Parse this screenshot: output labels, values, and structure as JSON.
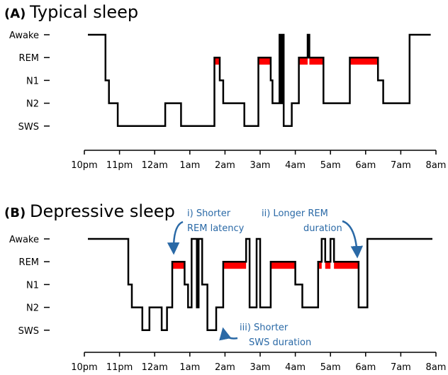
{
  "chart_data": [
    {
      "type": "line",
      "panel_label": "(A)",
      "title": "Typical sleep",
      "stages": [
        "Awake",
        "REM",
        "N1",
        "N2",
        "SWS"
      ],
      "x_ticks": [
        "10pm",
        "11pm",
        "12am",
        "1am",
        "2am",
        "3am",
        "4am",
        "5am",
        "6am",
        "7am",
        "8am"
      ],
      "x_range_hours": [
        0,
        10
      ],
      "hypnogram": [
        [
          0.1,
          "Awake"
        ],
        [
          0.6,
          "Awake"
        ],
        [
          0.6,
          "N1"
        ],
        [
          0.7,
          "N1"
        ],
        [
          0.7,
          "N2"
        ],
        [
          0.95,
          "N2"
        ],
        [
          0.95,
          "SWS"
        ],
        [
          2.3,
          "SWS"
        ],
        [
          2.3,
          "N2"
        ],
        [
          2.75,
          "N2"
        ],
        [
          2.75,
          "SWS"
        ],
        [
          3.7,
          "SWS"
        ],
        [
          3.7,
          "REM"
        ],
        [
          3.85,
          "REM"
        ],
        [
          3.85,
          "N1"
        ],
        [
          3.95,
          "N1"
        ],
        [
          3.95,
          "N2"
        ],
        [
          4.55,
          "N2"
        ],
        [
          4.55,
          "SWS"
        ],
        [
          4.95,
          "SWS"
        ],
        [
          4.95,
          "REM"
        ],
        [
          5.3,
          "REM"
        ],
        [
          5.3,
          "N1"
        ],
        [
          5.35,
          "N1"
        ],
        [
          5.35,
          "N2"
        ],
        [
          5.55,
          "N2"
        ],
        [
          5.55,
          "Awake"
        ],
        [
          5.6,
          "Awake"
        ],
        [
          5.6,
          "N2"
        ],
        [
          5.63,
          "N2"
        ],
        [
          5.63,
          "Awake"
        ],
        [
          5.67,
          "Awake"
        ],
        [
          5.67,
          "SWS"
        ],
        [
          5.9,
          "SWS"
        ],
        [
          5.9,
          "N2"
        ],
        [
          6.1,
          "N2"
        ],
        [
          6.1,
          "REM"
        ],
        [
          6.35,
          "REM"
        ],
        [
          6.35,
          "Awake"
        ],
        [
          6.4,
          "Awake"
        ],
        [
          6.4,
          "REM"
        ],
        [
          6.8,
          "REM"
        ],
        [
          6.8,
          "N2"
        ],
        [
          7.55,
          "N2"
        ],
        [
          7.55,
          "REM"
        ],
        [
          8.35,
          "REM"
        ],
        [
          8.35,
          "N1"
        ],
        [
          8.5,
          "N1"
        ],
        [
          8.5,
          "N2"
        ],
        [
          9.25,
          "N2"
        ],
        [
          9.25,
          "Awake"
        ],
        [
          9.85,
          "Awake"
        ]
      ],
      "rem_intervals": [
        [
          3.7,
          3.85
        ],
        [
          4.95,
          5.3
        ],
        [
          6.1,
          6.35
        ],
        [
          6.4,
          6.8
        ],
        [
          7.55,
          8.35
        ]
      ],
      "annotations": []
    },
    {
      "type": "line",
      "panel_label": "(B)",
      "title": "Depressive sleep",
      "stages": [
        "Awake",
        "REM",
        "N1",
        "N2",
        "SWS"
      ],
      "x_ticks": [
        "10pm",
        "11pm",
        "12am",
        "1am",
        "2am",
        "3am",
        "4am",
        "5am",
        "6am",
        "7am",
        "8am"
      ],
      "x_range_hours": [
        0,
        10
      ],
      "hypnogram": [
        [
          0.1,
          "Awake"
        ],
        [
          1.25,
          "Awake"
        ],
        [
          1.25,
          "N1"
        ],
        [
          1.35,
          "N1"
        ],
        [
          1.35,
          "N2"
        ],
        [
          1.65,
          "N2"
        ],
        [
          1.65,
          "SWS"
        ],
        [
          1.85,
          "SWS"
        ],
        [
          1.85,
          "N2"
        ],
        [
          2.2,
          "N2"
        ],
        [
          2.2,
          "SWS"
        ],
        [
          2.35,
          "SWS"
        ],
        [
          2.35,
          "N2"
        ],
        [
          2.5,
          "N2"
        ],
        [
          2.5,
          "REM"
        ],
        [
          2.85,
          "REM"
        ],
        [
          2.85,
          "N1"
        ],
        [
          2.95,
          "N1"
        ],
        [
          2.95,
          "N2"
        ],
        [
          3.05,
          "N2"
        ],
        [
          3.05,
          "Awake"
        ],
        [
          3.2,
          "Awake"
        ],
        [
          3.2,
          "N2"
        ],
        [
          3.25,
          "N2"
        ],
        [
          3.25,
          "Awake"
        ],
        [
          3.35,
          "Awake"
        ],
        [
          3.35,
          "N1"
        ],
        [
          3.5,
          "N1"
        ],
        [
          3.5,
          "SWS"
        ],
        [
          3.75,
          "SWS"
        ],
        [
          3.75,
          "N2"
        ],
        [
          3.95,
          "N2"
        ],
        [
          3.95,
          "REM"
        ],
        [
          4.6,
          "REM"
        ],
        [
          4.6,
          "Awake"
        ],
        [
          4.7,
          "Awake"
        ],
        [
          4.7,
          "N2"
        ],
        [
          4.9,
          "N2"
        ],
        [
          4.9,
          "Awake"
        ],
        [
          5.0,
          "Awake"
        ],
        [
          5.0,
          "N2"
        ],
        [
          5.3,
          "N2"
        ],
        [
          5.3,
          "REM"
        ],
        [
          6.0,
          "REM"
        ],
        [
          6.0,
          "N1"
        ],
        [
          6.2,
          "N1"
        ],
        [
          6.2,
          "N2"
        ],
        [
          6.65,
          "N2"
        ],
        [
          6.65,
          "REM"
        ],
        [
          6.75,
          "REM"
        ],
        [
          6.75,
          "Awake"
        ],
        [
          6.85,
          "Awake"
        ],
        [
          6.85,
          "REM"
        ],
        [
          7.0,
          "REM"
        ],
        [
          7.0,
          "Awake"
        ],
        [
          7.1,
          "Awake"
        ],
        [
          7.1,
          "REM"
        ],
        [
          7.8,
          "REM"
        ],
        [
          7.8,
          "N2"
        ],
        [
          8.05,
          "N2"
        ],
        [
          8.05,
          "Awake"
        ],
        [
          9.9,
          "Awake"
        ]
      ],
      "rem_intervals": [
        [
          2.5,
          2.85
        ],
        [
          3.95,
          4.6
        ],
        [
          5.3,
          6.0
        ],
        [
          6.65,
          6.75
        ],
        [
          6.85,
          7.0
        ],
        [
          7.1,
          7.8
        ]
      ],
      "annotations": [
        {
          "id": "rem-latency",
          "lines": [
            "i) Shorter",
            "REM latency"
          ]
        },
        {
          "id": "rem-duration",
          "lines": [
            "ii) Longer REM",
            "duration"
          ]
        },
        {
          "id": "sws-duration",
          "lines": [
            "iii) Shorter",
            "SWS duration"
          ]
        }
      ]
    }
  ],
  "colors": {
    "line": "#000000",
    "rem_fill": "#ff0000",
    "annotation": "#2a69a6"
  }
}
